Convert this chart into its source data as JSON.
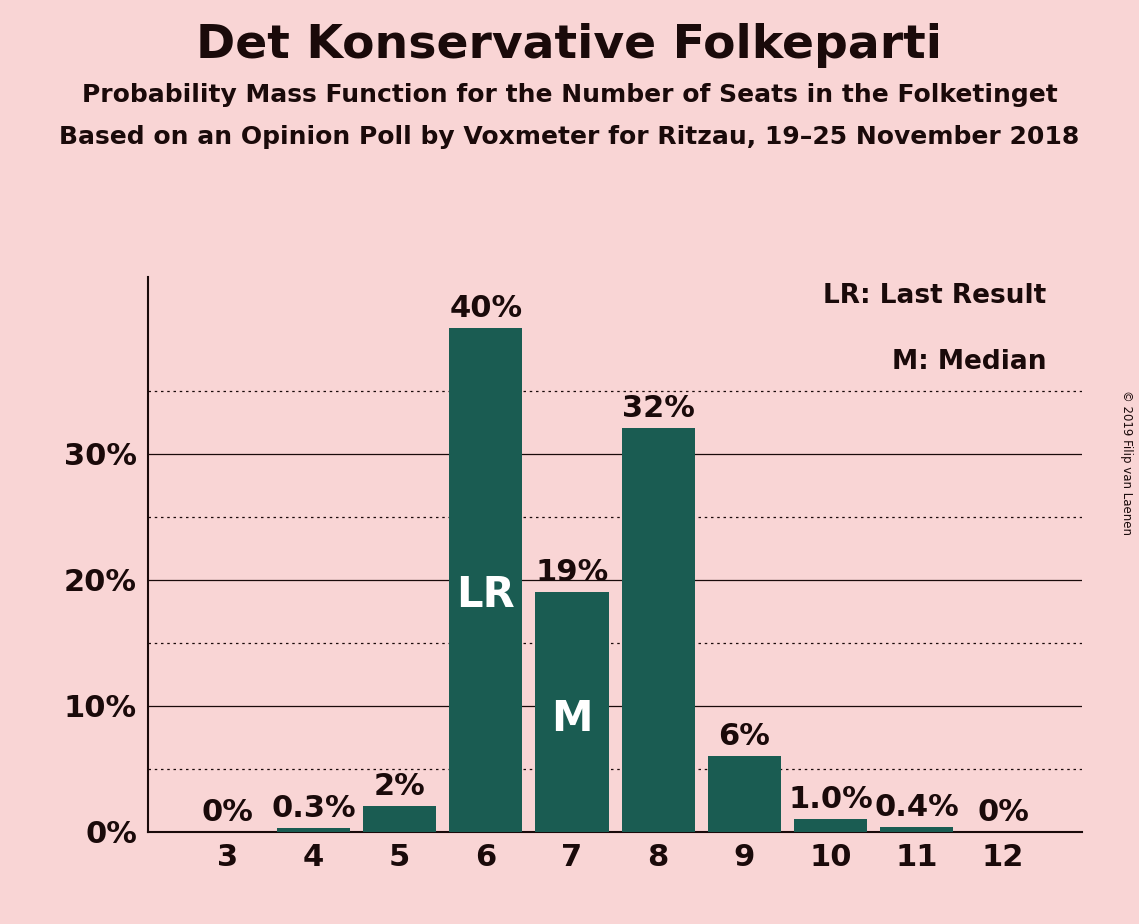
{
  "title": "Det Konservative Folkeparti",
  "subtitle1": "Probability Mass Function for the Number of Seats in the Folketinget",
  "subtitle2": "Based on an Opinion Poll by Voxmeter for Ritzau, 19–25 November 2018",
  "copyright": "© 2019 Filip van Laenen",
  "categories": [
    3,
    4,
    5,
    6,
    7,
    8,
    9,
    10,
    11,
    12
  ],
  "values": [
    0.0,
    0.3,
    2.0,
    40.0,
    19.0,
    32.0,
    6.0,
    1.0,
    0.4,
    0.0
  ],
  "bar_labels": [
    "0%",
    "0.3%",
    "2%",
    "40%",
    "19%",
    "32%",
    "6%",
    "1.0%",
    "0.4%",
    "0%"
  ],
  "bar_color": "#1a5c52",
  "background_color": "#f9d5d5",
  "text_color": "#1a0a0a",
  "lr_bar_index": 3,
  "median_bar_index": 4,
  "lr_label": "LR",
  "median_label": "M",
  "legend_lr": "LR: Last Result",
  "legend_m": "M: Median",
  "yticks": [
    0,
    10,
    20,
    30
  ],
  "ylim": [
    0,
    44
  ],
  "dotted_yticks": [
    5,
    15,
    25,
    35
  ],
  "title_fontsize": 34,
  "subtitle_fontsize": 18,
  "tick_fontsize": 22,
  "bar_label_fontsize": 22,
  "inside_label_fontsize": 30,
  "legend_fontsize": 19
}
